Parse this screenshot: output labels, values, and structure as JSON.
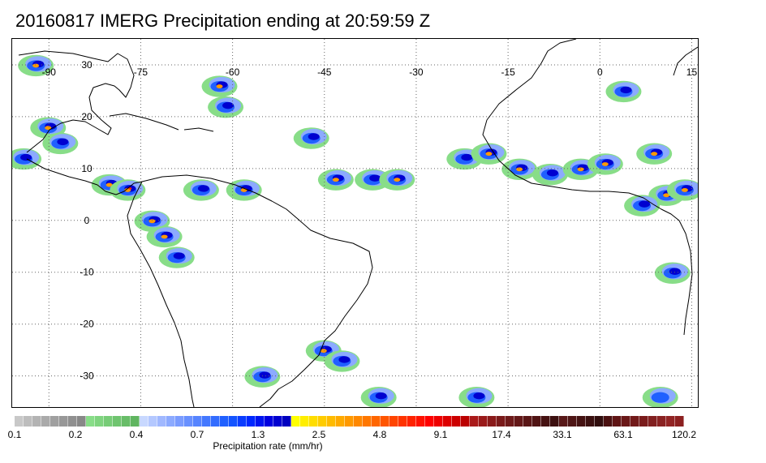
{
  "title": "20160817 IMERG Precipitation ending at 20:59:59 Z",
  "map": {
    "projection": "equirectangular",
    "lon_range": [
      -96,
      16
    ],
    "lat_range": [
      -36,
      35
    ],
    "longitude_labels": [
      "-90",
      "-75",
      "-60",
      "-45",
      "-30",
      "-15",
      "0",
      "15"
    ],
    "latitude_labels": [
      "30",
      "20",
      "10",
      "0",
      "-10",
      "-20",
      "-30"
    ],
    "gridlines": "dotted",
    "coastlines": "black"
  },
  "colorbar": {
    "title": "Precipitation rate (mm/hr)",
    "tick_labels": [
      "0.1",
      "0.2",
      "0.4",
      "0.7",
      "1.3",
      "2.5",
      "4.8",
      "9.1",
      "17.4",
      "33.1",
      "63.1",
      "120.2"
    ],
    "colors": [
      "#c8c8c8",
      "#bdbdbd",
      "#b3b3b3",
      "#aaaaaa",
      "#a0a0a0",
      "#989898",
      "#909090",
      "#888888",
      "#88dd88",
      "#7fd47f",
      "#77cc77",
      "#6fc46f",
      "#68bd68",
      "#60b560",
      "#c8d8ff",
      "#b4c8ff",
      "#a0b8ff",
      "#8caaff",
      "#7a9cff",
      "#6890ff",
      "#5684ff",
      "#4478ff",
      "#326cff",
      "#2060ff",
      "#1454ff",
      "#0a3cff",
      "#0028ff",
      "#0014f0",
      "#0000e0",
      "#0000d0",
      "#0000c0",
      "#ffff00",
      "#ffee00",
      "#ffdd00",
      "#ffcc00",
      "#ffbb00",
      "#ffaa00",
      "#ff9900",
      "#ff8800",
      "#ff7700",
      "#ff6600",
      "#ff5500",
      "#ff4400",
      "#ff3300",
      "#ff2200",
      "#ff1100",
      "#ff0000",
      "#ee0000",
      "#dd0000",
      "#cc0000",
      "#bb0000",
      "#aa1a1a",
      "#9a1a1a",
      "#8a1a1a",
      "#7a1a1a",
      "#6e1a1a",
      "#641818",
      "#5a1616",
      "#501414",
      "#461212",
      "#3c1010",
      "#581818",
      "#4e1515",
      "#441212",
      "#3a1010",
      "#300d0d",
      "#4a1010",
      "#601515",
      "#6a1818",
      "#721a1a",
      "#7a1c1c",
      "#822020",
      "#8a2222",
      "#922424",
      "#8c2020"
    ]
  },
  "precipitation_cells": [
    {
      "lon": -92,
      "lat": 30,
      "level": 3
    },
    {
      "lon": -90,
      "lat": 18,
      "level": 3
    },
    {
      "lon": -88,
      "lat": 15,
      "level": 2
    },
    {
      "lon": -94,
      "lat": 12,
      "level": 2
    },
    {
      "lon": -80,
      "lat": 7,
      "level": 3
    },
    {
      "lon": -77,
      "lat": 6,
      "level": 4
    },
    {
      "lon": -73,
      "lat": 0,
      "level": 3
    },
    {
      "lon": -71,
      "lat": -3,
      "level": 3
    },
    {
      "lon": -69,
      "lat": -7,
      "level": 2
    },
    {
      "lon": -62,
      "lat": 26,
      "level": 3
    },
    {
      "lon": -61,
      "lat": 22,
      "level": 2
    },
    {
      "lon": -58,
      "lat": 6,
      "level": 3
    },
    {
      "lon": -65,
      "lat": 6,
      "level": 2
    },
    {
      "lon": -47,
      "lat": 16,
      "level": 2
    },
    {
      "lon": -43,
      "lat": 8,
      "level": 3
    },
    {
      "lon": -37,
      "lat": 8,
      "level": 2
    },
    {
      "lon": -33,
      "lat": 8,
      "level": 3
    },
    {
      "lon": -22,
      "lat": 12,
      "level": 2
    },
    {
      "lon": -18,
      "lat": 13,
      "level": 3
    },
    {
      "lon": -13,
      "lat": 10,
      "level": 3
    },
    {
      "lon": -8,
      "lat": 9,
      "level": 2
    },
    {
      "lon": -3,
      "lat": 10,
      "level": 3
    },
    {
      "lon": 1,
      "lat": 11,
      "level": 3
    },
    {
      "lon": 4,
      "lat": 25,
      "level": 2
    },
    {
      "lon": 9,
      "lat": 13,
      "level": 3
    },
    {
      "lon": 11,
      "lat": 5,
      "level": 3
    },
    {
      "lon": 14,
      "lat": 6,
      "level": 3
    },
    {
      "lon": 7,
      "lat": 3,
      "level": 2
    },
    {
      "lon": 12,
      "lat": -10,
      "level": 2
    },
    {
      "lon": -45,
      "lat": -25,
      "level": 3
    },
    {
      "lon": -42,
      "lat": -27,
      "level": 2
    },
    {
      "lon": -55,
      "lat": -30,
      "level": 2
    },
    {
      "lon": -36,
      "lat": -34,
      "level": 2
    },
    {
      "lon": -20,
      "lat": -34,
      "level": 2
    },
    {
      "lon": 10,
      "lat": -34,
      "level": 1
    }
  ]
}
